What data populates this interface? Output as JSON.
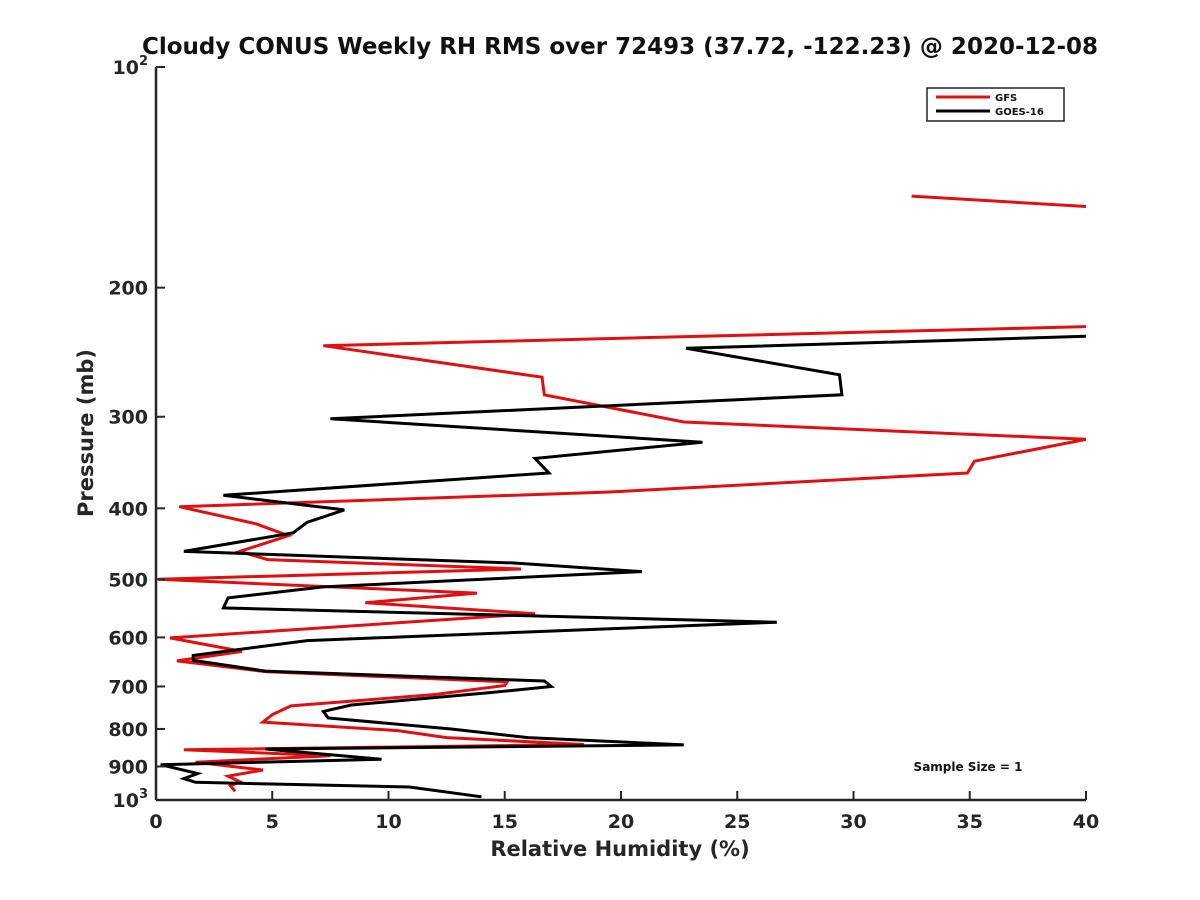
{
  "chart_data": {
    "type": "line",
    "title": "Cloudy CONUS Weekly RH RMS over 72493 (37.72, -122.23) @ 2020-12-08",
    "xlabel": "Relative Humidity (%)",
    "ylabel": "Pressure (mb)",
    "xlim": [
      0,
      40
    ],
    "ylim": [
      100,
      1000
    ],
    "yscale": "log",
    "y_reversed": true,
    "x_ticks": [
      "0",
      "5",
      "10",
      "15",
      "20",
      "25",
      "30",
      "35",
      "40"
    ],
    "y_ticks": [
      {
        "value": 100,
        "base": "10",
        "exp": "2"
      },
      {
        "value": 200,
        "label": "200"
      },
      {
        "value": 300,
        "label": "300"
      },
      {
        "value": 400,
        "label": "400"
      },
      {
        "value": 500,
        "label": "500"
      },
      {
        "value": 600,
        "label": "600"
      },
      {
        "value": 700,
        "label": "700"
      },
      {
        "value": 800,
        "label": "800"
      },
      {
        "value": 900,
        "label": "900"
      },
      {
        "value": 1000,
        "base": "10",
        "exp": "3"
      }
    ],
    "legend_position": "top-right",
    "annotation": "Sample Size = 1",
    "series": [
      {
        "name": "GFS",
        "color": "#e01010",
        "segments": [
          [
            [
              32.5,
              150
            ],
            [
              40,
              155
            ]
          ],
          [
            [
              40,
              226
            ],
            [
              7.2,
              240
            ],
            [
              16.6,
              265
            ],
            [
              16.7,
              280
            ],
            [
              22.7,
              305
            ],
            [
              40,
              322
            ],
            [
              35.2,
              345
            ],
            [
              34.9,
              358
            ],
            [
              19.5,
              380
            ],
            [
              1.0,
              398
            ],
            [
              4.3,
              420
            ],
            [
              5.7,
              436
            ],
            [
              3.6,
              458
            ],
            [
              4.8,
              470
            ],
            [
              15.7,
              484
            ],
            [
              0.1,
              500
            ],
            [
              13.8,
              522
            ],
            [
              9.0,
              538
            ],
            [
              16.3,
              557
            ],
            [
              0.6,
              601
            ],
            [
              3.7,
              627
            ],
            [
              0.9,
              646
            ],
            [
              4.7,
              668
            ],
            [
              15.1,
              690
            ],
            [
              15.0,
              698
            ],
            [
              12.0,
              718
            ],
            [
              5.8,
              744
            ],
            [
              5.0,
              765
            ],
            [
              4.6,
              783
            ],
            [
              10.4,
              804
            ],
            [
              12.5,
              822
            ],
            [
              18.4,
              840
            ],
            [
              1.2,
              854
            ],
            [
              7.5,
              870
            ],
            [
              1.7,
              888
            ],
            [
              4.6,
              910
            ],
            [
              3.1,
              928
            ],
            [
              3.6,
              944
            ],
            [
              3.2,
              956
            ],
            [
              3.4,
              973
            ]
          ]
        ]
      },
      {
        "name": "GOES-16",
        "color": "#000000",
        "segments": [
          [
            [
              40,
              233
            ],
            [
              22.8,
              242
            ],
            [
              29.4,
              263
            ],
            [
              29.5,
              280
            ],
            [
              7.5,
              302
            ],
            [
              23.5,
              325
            ],
            [
              16.3,
              342
            ],
            [
              16.9,
              358
            ],
            [
              2.9,
              384
            ],
            [
              8.1,
              402
            ],
            [
              6.5,
              418
            ],
            [
              5.9,
              432
            ],
            [
              1.2,
              458
            ],
            [
              15.4,
              475
            ],
            [
              20.9,
              488
            ],
            [
              7.2,
              512
            ],
            [
              3.1,
              530
            ],
            [
              2.9,
              547
            ],
            [
              26.7,
              572
            ],
            [
              6.5,
              606
            ],
            [
              1.6,
              635
            ],
            [
              1.6,
              645
            ],
            [
              4.7,
              667
            ],
            [
              16.7,
              688
            ],
            [
              17.0,
              700
            ],
            [
              14.3,
              714
            ],
            [
              8.4,
              742
            ],
            [
              7.2,
              757
            ],
            [
              7.4,
              773
            ],
            [
              12.7,
              800
            ],
            [
              16.0,
              822
            ],
            [
              22.7,
              841
            ],
            [
              4.7,
              852
            ],
            [
              9.7,
              880
            ],
            [
              0.2,
              895
            ],
            [
              1.8,
              920
            ],
            [
              1.2,
              935
            ],
            [
              1.7,
              946
            ],
            [
              10.9,
              960
            ],
            [
              14.0,
              990
            ]
          ]
        ]
      }
    ]
  }
}
